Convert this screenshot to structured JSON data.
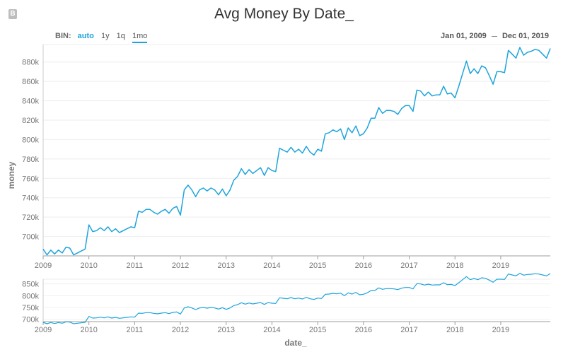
{
  "header": {
    "title": "Avg Money By Date_",
    "badge": "B"
  },
  "controls": {
    "bin_label": "BIN:",
    "bin_options": [
      "auto",
      "1y",
      "1q",
      "1mo"
    ],
    "active_bin": "1mo",
    "range_start": "Jan 01, 2009",
    "range_end": "Dec 01, 2019"
  },
  "colors": {
    "line": "#1ea4dc",
    "accent": "#1ea4dc"
  },
  "chart_data": {
    "type": "line",
    "title": "Avg Money By Date_",
    "xlabel": "date_",
    "ylabel": "money",
    "x_ticks": [
      "2009",
      "2010",
      "2011",
      "2012",
      "2013",
      "2014",
      "2015",
      "2016",
      "2017",
      "2018",
      "2019"
    ],
    "y_ticks": [
      "700k",
      "720k",
      "740k",
      "760k",
      "780k",
      "800k",
      "820k",
      "840k",
      "860k",
      "880k"
    ],
    "overview_y_ticks": [
      "700k",
      "750k",
      "800k",
      "850k"
    ],
    "x_start": "2009-01",
    "x_step": "1 month",
    "ylim": [
      680000,
      898000
    ],
    "series": [
      {
        "values": [
          687000,
          681000,
          686000,
          682000,
          686000,
          683000,
          689000,
          688000,
          681000,
          683000,
          685000,
          687000,
          712000,
          705000,
          706000,
          709000,
          706000,
          710000,
          705000,
          708000,
          704000,
          706000,
          708000,
          710000,
          709000,
          726000,
          725000,
          728000,
          728000,
          725000,
          723000,
          726000,
          728000,
          724000,
          729000,
          731000,
          722000,
          748000,
          753000,
          748000,
          741000,
          748000,
          750000,
          747000,
          750000,
          748000,
          743000,
          749000,
          742000,
          748000,
          758000,
          762000,
          770000,
          764000,
          769000,
          765000,
          768000,
          771000,
          763000,
          771000,
          768000,
          767000,
          791000,
          789000,
          787000,
          792000,
          787000,
          790000,
          786000,
          793000,
          787000,
          784000,
          790000,
          788000,
          806000,
          807000,
          810000,
          808000,
          811000,
          800000,
          812000,
          807000,
          814000,
          804000,
          806000,
          812000,
          822000,
          822000,
          833000,
          827000,
          830000,
          830000,
          829000,
          826000,
          832000,
          835000,
          835000,
          829000,
          851000,
          850000,
          845000,
          849000,
          845000,
          846000,
          846000,
          855000,
          847000,
          848000,
          843000,
          855000,
          868000,
          881000,
          868000,
          873000,
          868000,
          876000,
          874000,
          866000,
          857000,
          870000,
          870000,
          869000,
          892000,
          888000,
          884000,
          895000,
          887000,
          890000,
          891000,
          893000,
          892000,
          888000,
          884000,
          894000
        ]
      }
    ]
  }
}
